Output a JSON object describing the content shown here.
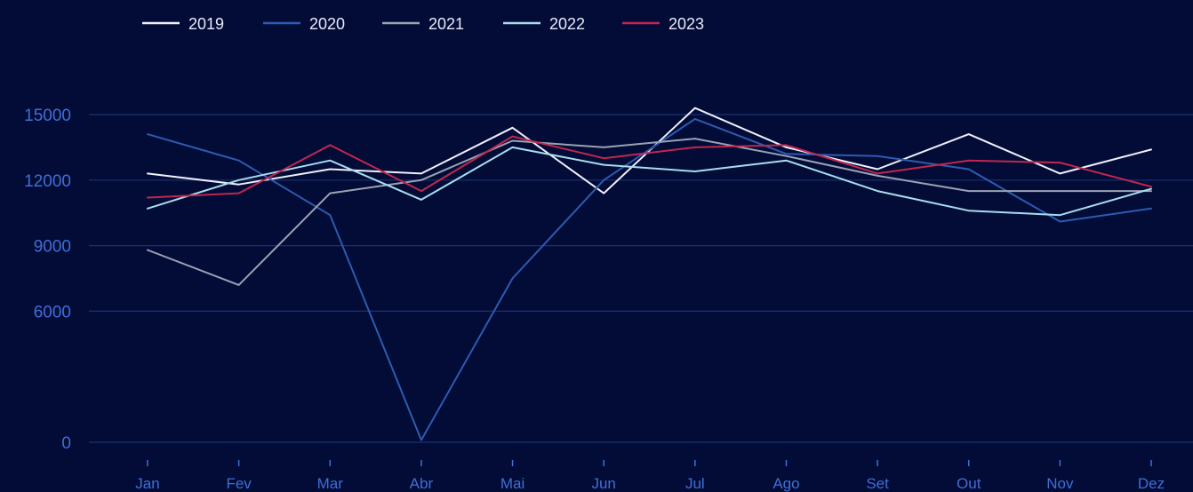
{
  "colors": {
    "background": "#020c36",
    "grid": "#1b3172",
    "tick_text": "#3f6fd8"
  },
  "chart_data": {
    "type": "line",
    "title": "",
    "xlabel": "",
    "ylabel": "",
    "categories": [
      "Jan",
      "Fev",
      "Mar",
      "Abr",
      "Mai",
      "Jun",
      "Jul",
      "Ago",
      "Set",
      "Out",
      "Nov",
      "Dez"
    ],
    "ylim": [
      -500,
      16500
    ],
    "yticks": [
      0,
      6000,
      9000,
      12000,
      15000
    ],
    "grid": true,
    "legend_position": "top-left",
    "series": [
      {
        "name": "2019",
        "color": "#eef1fb",
        "values": [
          12300,
          11800,
          12500,
          12300,
          14400,
          11400,
          15300,
          13500,
          12500,
          14100,
          12300,
          13400
        ]
      },
      {
        "name": "2020",
        "color": "#2d5bb3",
        "values": [
          14100,
          12900,
          10400,
          100,
          7500,
          12000,
          14800,
          13200,
          13100,
          12500,
          10100,
          10700
        ]
      },
      {
        "name": "2021",
        "color": "#9aa3b5",
        "values": [
          8800,
          7200,
          11400,
          12000,
          13800,
          13500,
          13900,
          13100,
          12200,
          11500,
          11500,
          11500
        ]
      },
      {
        "name": "2022",
        "color": "#a8dcef",
        "values": [
          10700,
          12000,
          12900,
          11100,
          13500,
          12700,
          12400,
          12900,
          11500,
          10600,
          10400,
          11600
        ]
      },
      {
        "name": "2023",
        "color": "#c3264f",
        "values": [
          11200,
          11400,
          13600,
          11500,
          14000,
          13000,
          13500,
          13600,
          12300,
          12900,
          12800,
          11700
        ]
      }
    ]
  }
}
